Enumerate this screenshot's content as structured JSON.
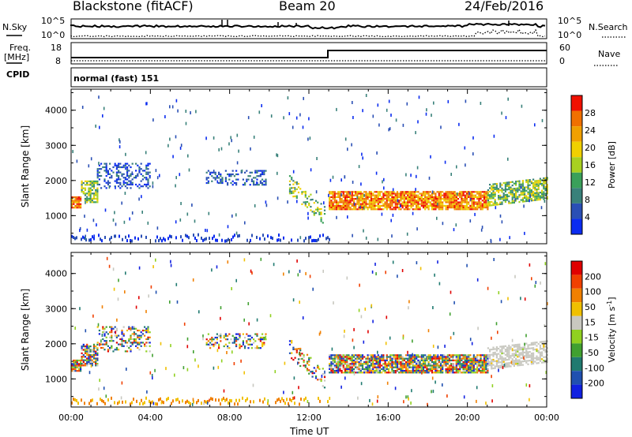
{
  "header": {
    "station": "Blackstone (fitACF)",
    "beam": "Beam 20",
    "date": "24/Feb/2016"
  },
  "top_panels": {
    "nsky_label": "N.Sky",
    "nsearch_label": "N.Search",
    "nsky_ticks": [
      "10^5",
      "10^0"
    ],
    "freq_label_1": "Freq.",
    "freq_label_2": "[MHz]",
    "freq_ticks": [
      "18",
      "8"
    ],
    "nave_label": "Nave",
    "nave_ticks": [
      "60",
      "0"
    ],
    "cpid_label": "CPID",
    "cpid_text": "normal (fast) 151"
  },
  "colors": {
    "power_scale": [
      "#0b2cf0",
      "#2a4fb5",
      "#39817a",
      "#3aa05a",
      "#a8d020",
      "#f0d000",
      "#f0a000",
      "#f07000",
      "#f01000"
    ],
    "velocity_scale": [
      "#1020e0",
      "#2050b0",
      "#207a70",
      "#40a030",
      "#90d020",
      "#c8c8c0",
      "#f0c000",
      "#f08000",
      "#f04000",
      "#e00000"
    ]
  },
  "chart_data": [
    {
      "type": "heatmap",
      "name": "power",
      "ylabel": "Slant Range [km]",
      "xlabel": "",
      "ylim": [
        200,
        4600
      ],
      "xlim_hours": [
        0,
        24
      ],
      "yticks": [
        "1000",
        "2000",
        "3000",
        "4000"
      ],
      "colorbar": {
        "label": "Power [dB]",
        "ticks": [
          "4",
          "8",
          "12",
          "16",
          "20",
          "24",
          "28"
        ]
      },
      "echo_bands": [
        {
          "t0": 0.0,
          "t1": 0.5,
          "r0": 1250,
          "r1": 1550,
          "level": "high"
        },
        {
          "t0": 0.5,
          "t1": 1.3,
          "r0": 1400,
          "r1": 2000,
          "level": "mid"
        },
        {
          "t0": 1.3,
          "t1": 4.0,
          "r0": 1800,
          "r1": 2500,
          "level": "low"
        },
        {
          "t0": 6.8,
          "t1": 9.8,
          "r0": 1900,
          "r1": 2300,
          "level": "low"
        },
        {
          "t0": 11.0,
          "t1": 12.8,
          "r0": 900,
          "r1": 2000,
          "level": "mid"
        },
        {
          "t0": 13.0,
          "t1": 21.0,
          "r0": 1200,
          "r1": 1700,
          "level": "high"
        },
        {
          "t0": 21.0,
          "t1": 24.0,
          "r0": 1300,
          "r1": 2100,
          "level": "mid"
        }
      ]
    },
    {
      "type": "heatmap",
      "name": "velocity",
      "ylabel": "Slant Range [km]",
      "xlabel": "Time UT",
      "ylim": [
        200,
        4600
      ],
      "xlim_hours": [
        0,
        24
      ],
      "yticks": [
        "1000",
        "2000",
        "3000",
        "4000"
      ],
      "xticks": [
        "00:00",
        "04:00",
        "08:00",
        "12:00",
        "16:00",
        "20:00",
        "00:00"
      ],
      "colorbar": {
        "label": "Velocity [m s",
        "label_sup": "-1",
        "label_close": "]",
        "ticks": [
          "200",
          "100",
          "50",
          "15",
          "-15",
          "-50",
          "-100",
          "-200"
        ]
      }
    }
  ]
}
